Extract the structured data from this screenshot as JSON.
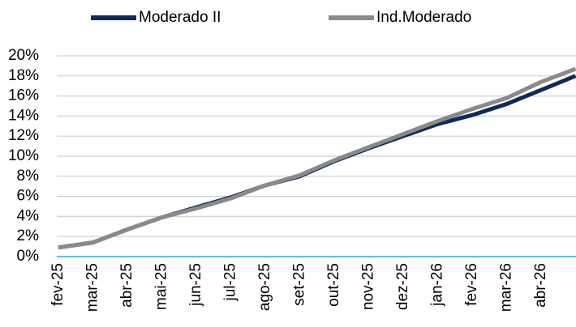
{
  "chart_data": {
    "type": "line",
    "categories": [
      "fev-25",
      "mar-25",
      "abr-25",
      "mai-25",
      "jun-25",
      "jul-25",
      "ago-25",
      "set-25",
      "out-25",
      "nov-25",
      "dez-25",
      "jan-26",
      "fev-26",
      "mar-26",
      "abr-26",
      null
    ],
    "series": [
      {
        "name": "Moderado II",
        "color": "#0d2a5c",
        "values": [
          0.9,
          1.4,
          2.7,
          3.9,
          4.9,
          5.9,
          7.1,
          8.0,
          9.5,
          10.8,
          12.0,
          13.2,
          14.1,
          15.2,
          16.6,
          18.0
        ]
      },
      {
        "name": "Ind.Moderado",
        "color": "#8a8a8a",
        "values": [
          0.9,
          1.4,
          2.7,
          3.9,
          4.8,
          5.8,
          7.1,
          8.1,
          9.6,
          10.9,
          12.2,
          13.5,
          14.7,
          15.8,
          17.4,
          18.7
        ]
      }
    ],
    "ylim": [
      0,
      20
    ],
    "yticks": [
      {
        "value": 0,
        "label": "0%"
      },
      {
        "value": 2,
        "label": "2%"
      },
      {
        "value": 4,
        "label": "4%"
      },
      {
        "value": 6,
        "label": "6%"
      },
      {
        "value": 8,
        "label": "8%"
      },
      {
        "value": 10,
        "label": "10%"
      },
      {
        "value": 12,
        "label": "12%"
      },
      {
        "value": 14,
        "label": "14%"
      },
      {
        "value": 16,
        "label": "16%"
      },
      {
        "value": 18,
        "label": "18%"
      },
      {
        "value": 20,
        "label": "20%"
      }
    ],
    "grid": true,
    "legend": "top"
  }
}
